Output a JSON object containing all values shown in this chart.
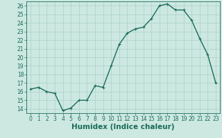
{
  "x": [
    0,
    1,
    2,
    3,
    4,
    5,
    6,
    7,
    8,
    9,
    10,
    11,
    12,
    13,
    14,
    15,
    16,
    17,
    18,
    19,
    20,
    21,
    22,
    23
  ],
  "y": [
    16.3,
    16.5,
    16.0,
    15.8,
    13.8,
    14.1,
    15.0,
    15.0,
    16.7,
    16.5,
    19.0,
    21.5,
    22.8,
    23.3,
    23.5,
    24.5,
    26.0,
    26.2,
    25.5,
    25.5,
    24.3,
    22.2,
    20.3,
    17.0
  ],
  "line_color": "#1a6b5a",
  "marker": "+",
  "marker_size": 3,
  "bg_color": "#cce8e0",
  "grid_color": "#aad0c8",
  "xlabel": "Humidex (Indice chaleur)",
  "ylabel": "",
  "xlim": [
    -0.5,
    23.5
  ],
  "ylim": [
    13.5,
    26.5
  ],
  "yticks": [
    14,
    15,
    16,
    17,
    18,
    19,
    20,
    21,
    22,
    23,
    24,
    25,
    26
  ],
  "xticks": [
    0,
    1,
    2,
    3,
    4,
    5,
    6,
    7,
    8,
    9,
    10,
    11,
    12,
    13,
    14,
    15,
    16,
    17,
    18,
    19,
    20,
    21,
    22,
    23
  ],
  "tick_label_fontsize": 5.5,
  "xlabel_fontsize": 7.5,
  "line_width": 1.0,
  "marker_edge_width": 0.8
}
